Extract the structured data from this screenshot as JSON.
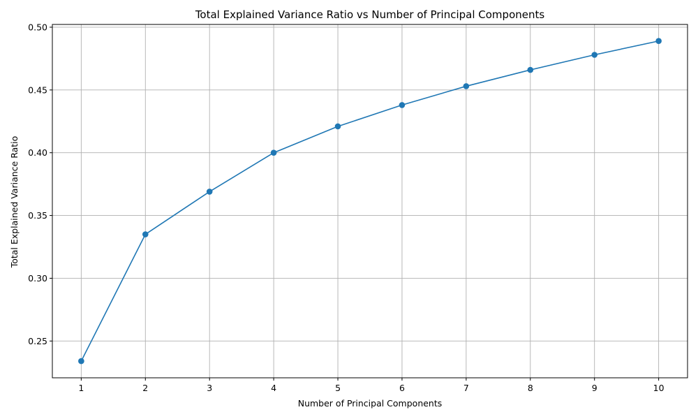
{
  "chart_data": {
    "type": "line",
    "title": "Total Explained Variance Ratio vs Number of Principal Components",
    "xlabel": "Number of Principal Components",
    "ylabel": "Total Explained Variance Ratio",
    "x": [
      1,
      2,
      3,
      4,
      5,
      6,
      7,
      8,
      9,
      10
    ],
    "series": [
      {
        "values": [
          0.234,
          0.335,
          0.369,
          0.4,
          0.421,
          0.438,
          0.453,
          0.466,
          0.478,
          0.489
        ],
        "color": "#1f77b4",
        "marker": "circle"
      }
    ],
    "xticks": [
      "1",
      "2",
      "3",
      "4",
      "5",
      "6",
      "7",
      "8",
      "9",
      "10"
    ],
    "yticks": [
      "0.25",
      "0.30",
      "0.35",
      "0.40",
      "0.45",
      "0.50"
    ],
    "xlim": [
      0.55,
      10.45
    ],
    "ylim": [
      0.2207,
      0.5022
    ],
    "grid": true,
    "legend": "none"
  }
}
